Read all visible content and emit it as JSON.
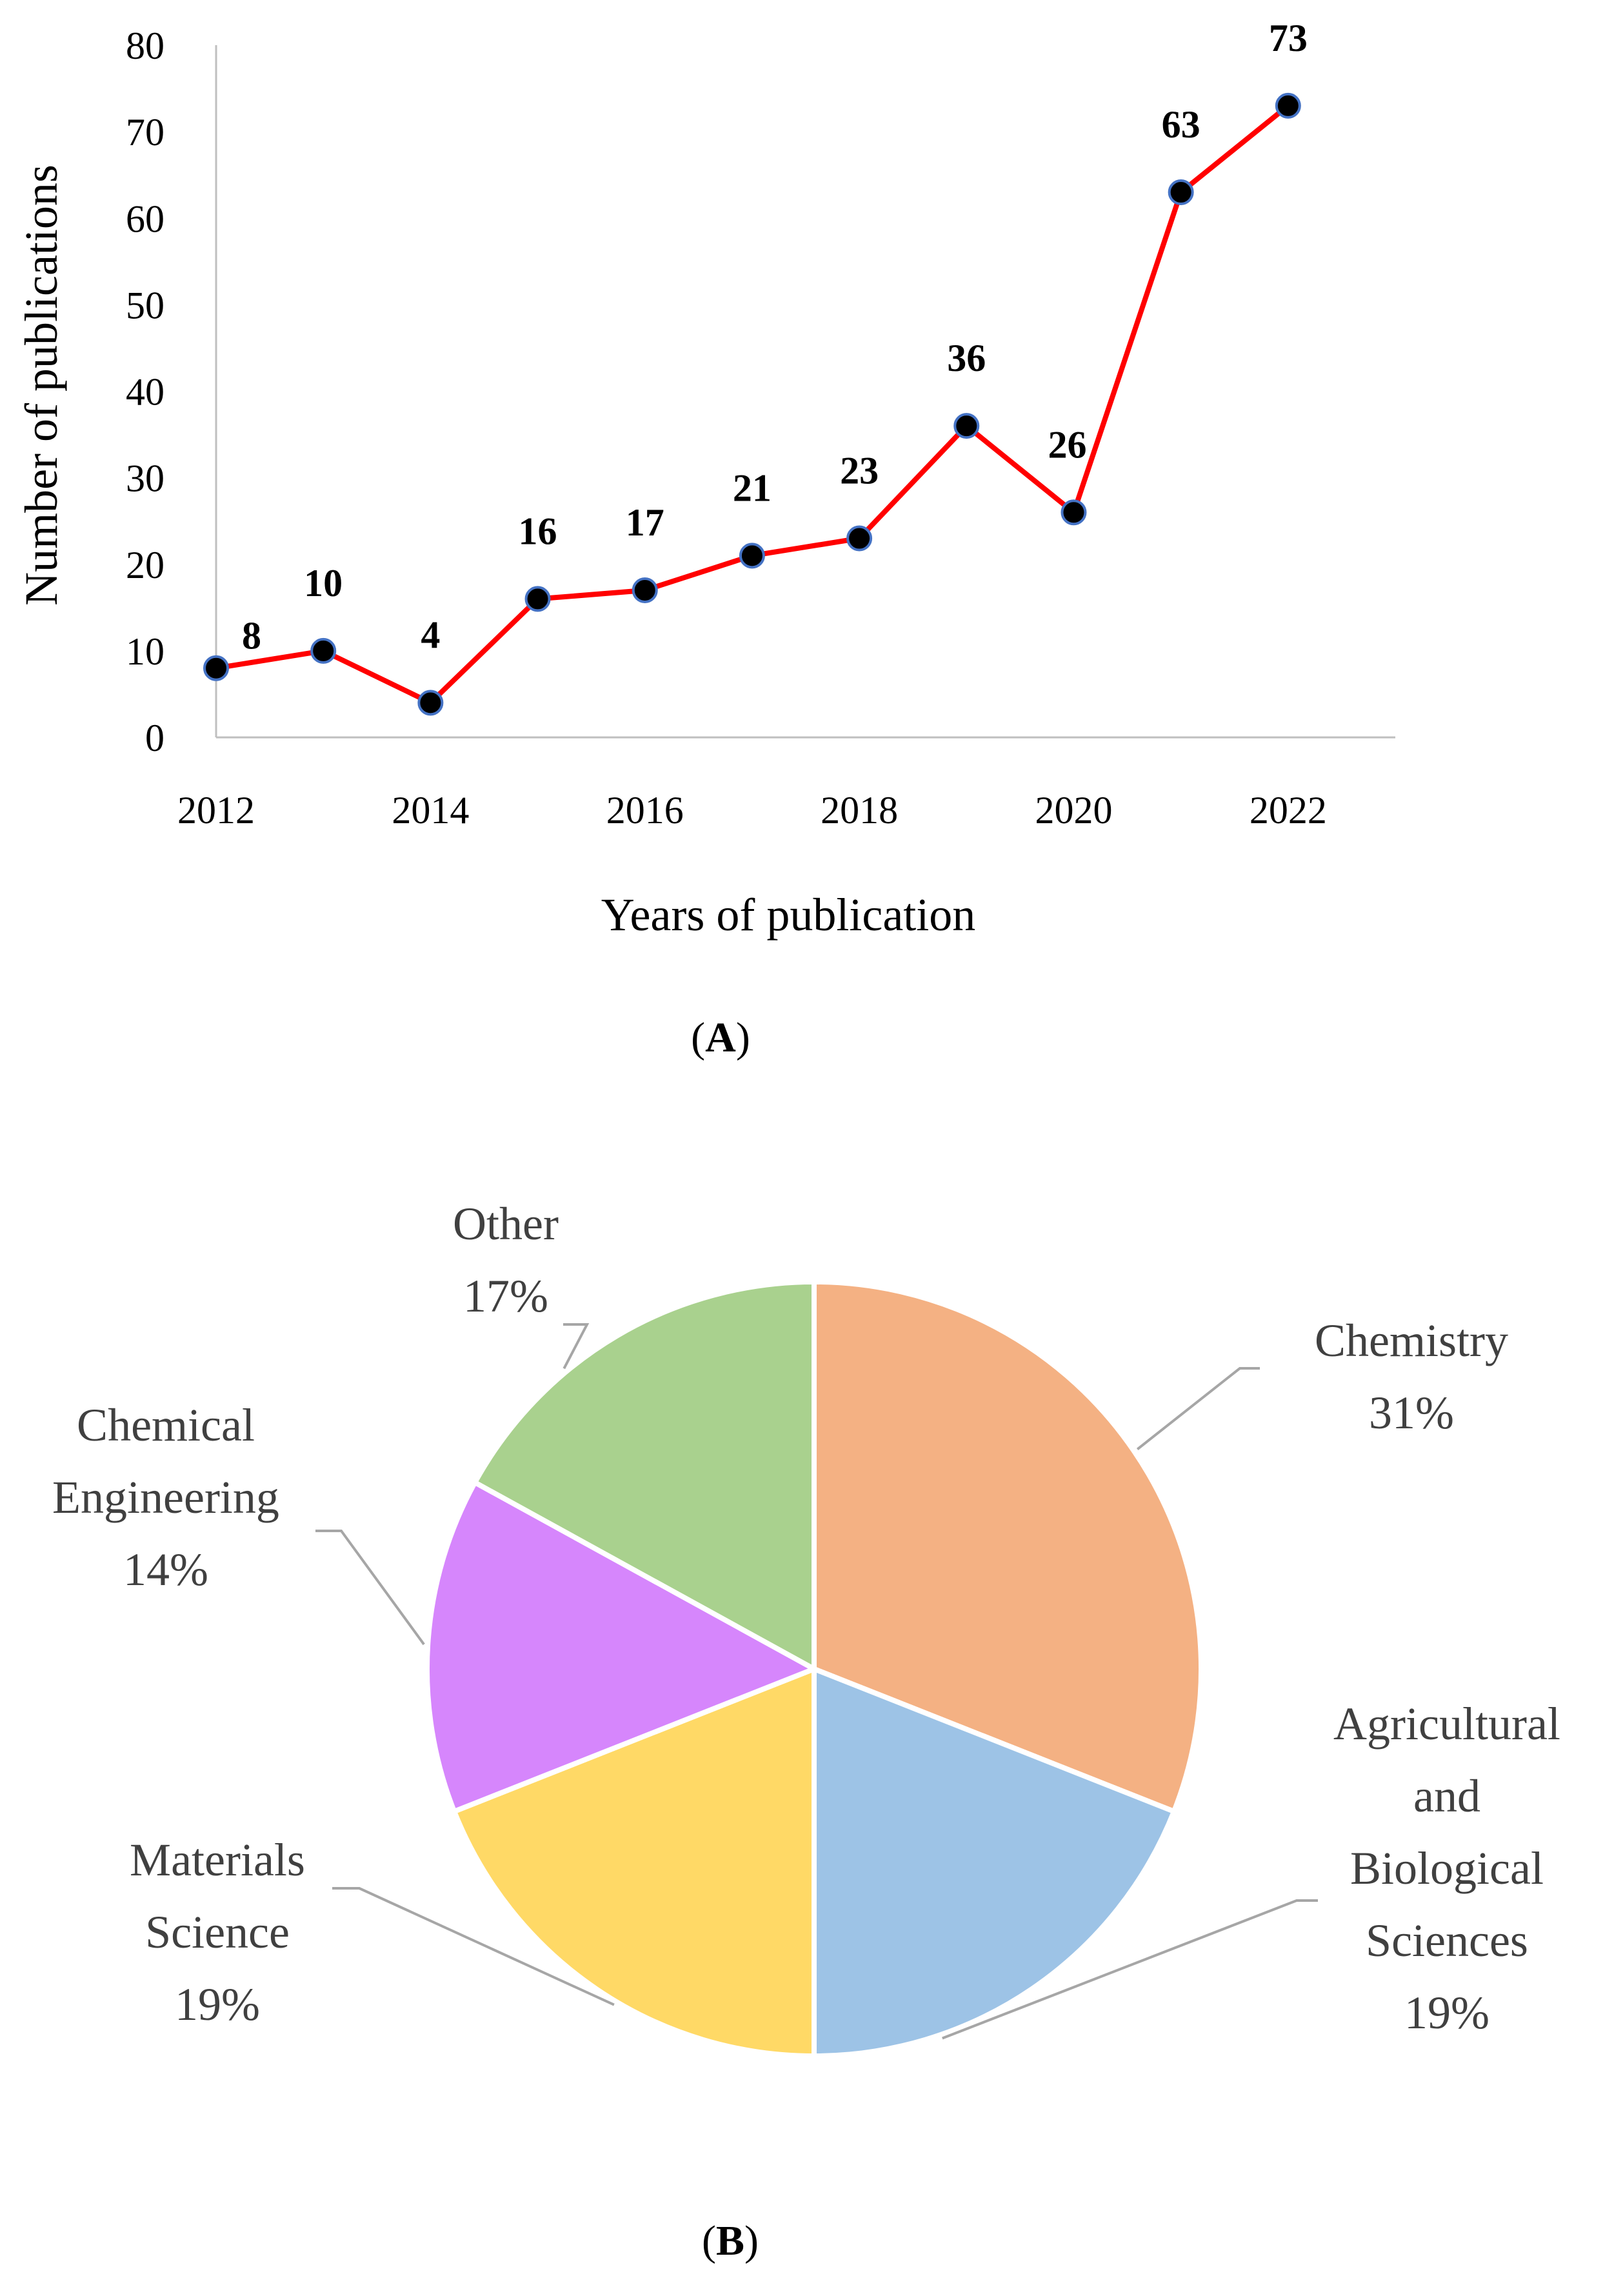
{
  "chart_data": [
    {
      "type": "line",
      "panel_label": "A",
      "title": "",
      "xlabel": "Years of publication",
      "ylabel": "Number of publications",
      "x": [
        2012,
        2013,
        2014,
        2015,
        2016,
        2017,
        2018,
        2019,
        2020,
        2021,
        2022
      ],
      "y": [
        8,
        10,
        4,
        16,
        17,
        21,
        23,
        36,
        26,
        63,
        73
      ],
      "data_labels": [
        "8",
        "10",
        "4",
        "16",
        "17",
        "21",
        "23",
        "36",
        "26",
        "63",
        "73"
      ],
      "xticks": [
        "2012",
        "2014",
        "2016",
        "2018",
        "2020",
        "2022"
      ],
      "yticks": [
        "0",
        "10",
        "20",
        "30",
        "40",
        "50",
        "60",
        "70",
        "80"
      ],
      "ylim": [
        0,
        80
      ],
      "xlim": [
        2012,
        2023
      ],
      "grid": false,
      "line_color": "#ff0000",
      "marker_color": "#000000",
      "marker_edge_color": "#4472c4"
    },
    {
      "type": "pie",
      "panel_label": "B",
      "slices": [
        {
          "name": "Chemistry",
          "label_lines": [
            "Chemistry",
            "31%"
          ],
          "value": 31,
          "color": "#f4b183"
        },
        {
          "name": "Agricultural and Biological Sciences",
          "label_lines": [
            "Agricultural",
            "and",
            "Biological",
            "Sciences",
            "19%"
          ],
          "value": 19,
          "color": "#9dc3e6"
        },
        {
          "name": "Materials Science",
          "label_lines": [
            "Materials",
            "Science",
            "19%"
          ],
          "value": 19,
          "color": "#ffd966"
        },
        {
          "name": "Chemical Engineering",
          "label_lines": [
            "Chemical",
            "Engineering",
            "14%"
          ],
          "value": 14,
          "color": "#d686fc"
        },
        {
          "name": "Other",
          "label_lines": [
            "Other",
            "17%"
          ],
          "value": 17,
          "color": "#a9d18e"
        }
      ]
    }
  ]
}
